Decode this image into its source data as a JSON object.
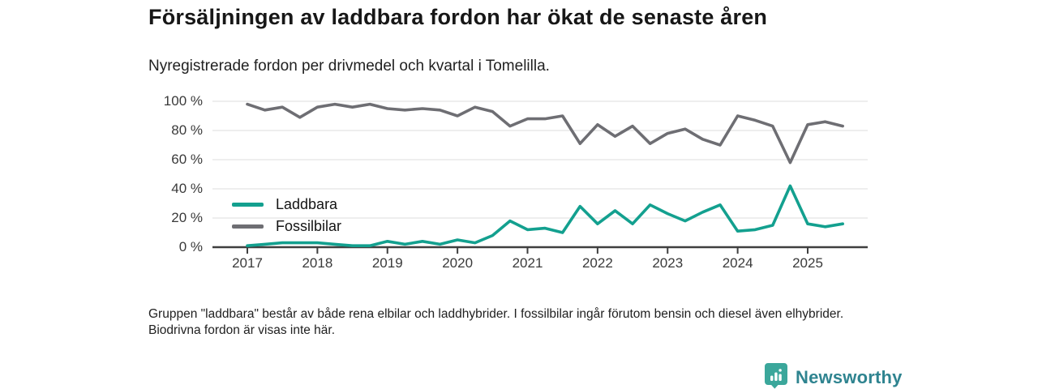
{
  "title": "Försäljningen av laddbara fordon har ökat de senaste åren",
  "subtitle": "Nyregistrerade fordon per drivmedel och kvartal i Tomelilla.",
  "footnote": "Gruppen \"laddbara\" består av både rena elbilar och laddhybrider. I fossilbilar ingår förutom bensin och diesel även elhybrider. Biodrivna fordon är visas inte här.",
  "branding": {
    "name": "Newsworthy",
    "icon": "newsworthy-bar-chart-pin-icon",
    "icon_color": "#3ba79b",
    "text_color": "#2f8490"
  },
  "colors": {
    "laddbara": "#13a08f",
    "fossilbilar": "#6e6e73",
    "grid": "#e4e4e4",
    "axis": "#3f3f3f"
  },
  "chart_data": {
    "type": "line",
    "title": "Försäljningen av laddbara fordon har ökat de senaste åren",
    "subtitle": "Nyregistrerade fordon per drivmedel och kvartal i Tomelilla.",
    "unit": "percent of newly registered vehicles per quarter",
    "x_start": "2017 Q1",
    "x_end": "2025 Q3",
    "points_per_year": 4,
    "x_tick_labels": [
      "2017",
      "2018",
      "2019",
      "2020",
      "2021",
      "2022",
      "2023",
      "2024",
      "2025"
    ],
    "y_tick_labels": [
      "0 %",
      "20 %",
      "40 %",
      "60 %",
      "80 %",
      "100 %"
    ],
    "ylim": [
      0,
      100
    ],
    "grid": true,
    "legend_position": "inside-left",
    "series": [
      {
        "name": "Laddbara",
        "color": "#13a08f",
        "values": [
          1,
          2,
          3,
          3,
          3,
          2,
          1,
          1,
          4,
          2,
          4,
          2,
          5,
          3,
          8,
          18,
          12,
          13,
          10,
          28,
          16,
          25,
          16,
          29,
          23,
          18,
          24,
          29,
          11,
          12,
          15,
          42,
          16,
          14,
          16
        ]
      },
      {
        "name": "Fossilbilar",
        "color": "#6e6e73",
        "values": [
          98,
          94,
          96,
          89,
          96,
          98,
          96,
          98,
          95,
          94,
          95,
          94,
          90,
          96,
          93,
          83,
          88,
          88,
          90,
          71,
          84,
          76,
          83,
          71,
          78,
          81,
          74,
          70,
          90,
          87,
          83,
          58,
          84,
          86,
          83
        ]
      }
    ]
  }
}
